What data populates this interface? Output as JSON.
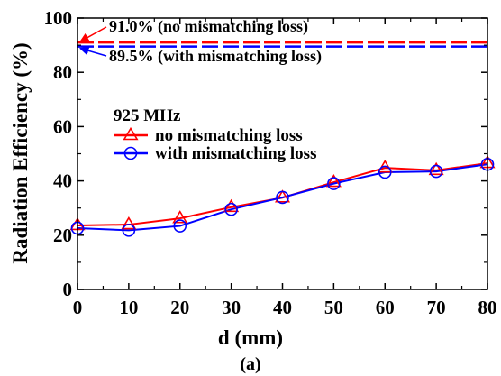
{
  "chart_data": {
    "type": "line",
    "title": "",
    "xlabel": "d (mm)",
    "ylabel": "Radiation Efficiency (%)",
    "xlim": [
      0,
      80
    ],
    "ylim": [
      0,
      100
    ],
    "xticks": [
      0,
      10,
      20,
      30,
      40,
      50,
      60,
      70,
      80
    ],
    "yticks": [
      0,
      20,
      40,
      60,
      80,
      100
    ],
    "grid": false,
    "legend": {
      "placement": "center-left",
      "title": "925 MHz"
    },
    "x": [
      0,
      10,
      20,
      30,
      40,
      50,
      60,
      70,
      80
    ],
    "series": [
      {
        "name": "no mismatching loss",
        "color": "#ff0000",
        "marker": "triangle",
        "values": [
          23.6,
          23.9,
          26.2,
          30.3,
          33.8,
          39.5,
          44.8,
          43.9,
          46.5
        ]
      },
      {
        "name": "with mismatching loss",
        "color": "#0000ff",
        "marker": "circle",
        "values": [
          22.6,
          21.8,
          23.4,
          29.5,
          33.9,
          39.0,
          43.2,
          43.5,
          46.1
        ]
      }
    ],
    "reference_lines": [
      {
        "y": 91.0,
        "color": "#ff0000",
        "style": "dashed",
        "label": "91.0% (no mismatching loss)"
      },
      {
        "y": 89.5,
        "color": "#0000ff",
        "style": "dashed",
        "label": "89.5% (with mismatching loss)"
      }
    ],
    "caption": "(a)"
  }
}
